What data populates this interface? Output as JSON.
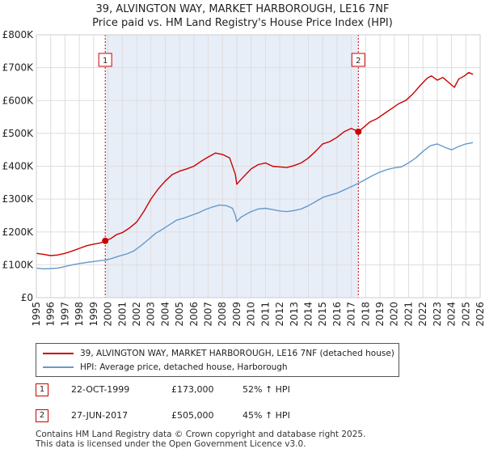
{
  "header": {
    "title_line1": "39, ALVINGTON WAY, MARKET HARBOROUGH, LE16 7NF",
    "title_line2": "Price paid vs. HM Land Registry's House Price Index (HPI)"
  },
  "colors": {
    "property": "#cc0000",
    "hpi": "#6699cc",
    "shade": "#e8eef8",
    "grid": "#dddddd",
    "marker": "#cc0000"
  },
  "chart_data": {
    "type": "line",
    "x_range": [
      1995,
      2026
    ],
    "ylim": [
      0,
      800000
    ],
    "y_ticks": [
      0,
      100000,
      200000,
      300000,
      400000,
      500000,
      600000,
      700000,
      800000
    ],
    "y_tick_labels": [
      "£0",
      "£100K",
      "£200K",
      "£300K",
      "£400K",
      "£500K",
      "£600K",
      "£700K",
      "£800K"
    ],
    "x_ticks": [
      1995,
      1996,
      1997,
      1998,
      1999,
      2000,
      2001,
      2002,
      2003,
      2004,
      2005,
      2006,
      2007,
      2008,
      2009,
      2010,
      2011,
      2012,
      2013,
      2014,
      2015,
      2016,
      2017,
      2018,
      2019,
      2020,
      2021,
      2022,
      2023,
      2024,
      2025,
      2026
    ],
    "x_tick_labels": [
      "1995",
      "1996",
      "1997",
      "1998",
      "1999",
      "2000",
      "2001",
      "2002",
      "2003",
      "2004",
      "2005",
      "2006",
      "2007",
      "2008",
      "2009",
      "2010",
      "2011",
      "2012",
      "2013",
      "2014",
      "2015",
      "2016",
      "2017",
      "2018",
      "2019",
      "2020",
      "2021",
      "2022",
      "2023",
      "2024",
      "2025",
      "2026"
    ],
    "shaded_range": [
      1999.81,
      2017.49
    ],
    "series": [
      {
        "name": "39, ALVINGTON WAY, MARKET HARBOROUGH, LE16 7NF (detached house)",
        "color": "#cc0000",
        "points": [
          [
            1995.0,
            135000
          ],
          [
            1995.5,
            132000
          ],
          [
            1996.0,
            128000
          ],
          [
            1996.5,
            130000
          ],
          [
            1997.0,
            135000
          ],
          [
            1997.5,
            142000
          ],
          [
            1998.0,
            150000
          ],
          [
            1998.5,
            158000
          ],
          [
            1999.0,
            163000
          ],
          [
            1999.5,
            167000
          ],
          [
            1999.81,
            173000
          ],
          [
            2000.2,
            180000
          ],
          [
            2000.6,
            192000
          ],
          [
            2001.0,
            198000
          ],
          [
            2001.5,
            212000
          ],
          [
            2002.0,
            230000
          ],
          [
            2002.5,
            262000
          ],
          [
            2003.0,
            300000
          ],
          [
            2003.5,
            330000
          ],
          [
            2004.0,
            355000
          ],
          [
            2004.5,
            375000
          ],
          [
            2005.0,
            385000
          ],
          [
            2005.5,
            392000
          ],
          [
            2006.0,
            400000
          ],
          [
            2006.5,
            415000
          ],
          [
            2007.0,
            428000
          ],
          [
            2007.5,
            440000
          ],
          [
            2008.0,
            436000
          ],
          [
            2008.5,
            425000
          ],
          [
            2008.9,
            375000
          ],
          [
            2009.0,
            345000
          ],
          [
            2009.3,
            360000
          ],
          [
            2009.7,
            378000
          ],
          [
            2010.0,
            392000
          ],
          [
            2010.5,
            405000
          ],
          [
            2011.0,
            410000
          ],
          [
            2011.5,
            400000
          ],
          [
            2012.0,
            398000
          ],
          [
            2012.5,
            396000
          ],
          [
            2013.0,
            402000
          ],
          [
            2013.5,
            410000
          ],
          [
            2014.0,
            425000
          ],
          [
            2014.5,
            445000
          ],
          [
            2015.0,
            468000
          ],
          [
            2015.5,
            475000
          ],
          [
            2016.0,
            488000
          ],
          [
            2016.5,
            505000
          ],
          [
            2017.0,
            515000
          ],
          [
            2017.49,
            505000
          ],
          [
            2017.9,
            520000
          ],
          [
            2018.3,
            535000
          ],
          [
            2018.8,
            545000
          ],
          [
            2019.3,
            560000
          ],
          [
            2019.8,
            575000
          ],
          [
            2020.3,
            590000
          ],
          [
            2020.8,
            600000
          ],
          [
            2021.3,
            620000
          ],
          [
            2021.8,
            645000
          ],
          [
            2022.3,
            668000
          ],
          [
            2022.6,
            675000
          ],
          [
            2023.0,
            662000
          ],
          [
            2023.4,
            670000
          ],
          [
            2023.8,
            655000
          ],
          [
            2024.2,
            640000
          ],
          [
            2024.5,
            665000
          ],
          [
            2024.9,
            675000
          ],
          [
            2025.2,
            685000
          ],
          [
            2025.5,
            680000
          ]
        ]
      },
      {
        "name": "HPI: Average price, detached house, Harborough",
        "color": "#6699cc",
        "points": [
          [
            1995.0,
            90000
          ],
          [
            1995.5,
            88000
          ],
          [
            1996.0,
            88500
          ],
          [
            1996.5,
            90000
          ],
          [
            1997.0,
            95000
          ],
          [
            1997.5,
            100000
          ],
          [
            1998.0,
            104000
          ],
          [
            1998.5,
            107000
          ],
          [
            1999.0,
            110000
          ],
          [
            1999.5,
            113000
          ],
          [
            1999.81,
            114000
          ],
          [
            2000.3,
            120000
          ],
          [
            2000.8,
            127000
          ],
          [
            2001.3,
            133000
          ],
          [
            2001.8,
            142000
          ],
          [
            2002.3,
            158000
          ],
          [
            2002.8,
            176000
          ],
          [
            2003.3,
            195000
          ],
          [
            2003.8,
            208000
          ],
          [
            2004.3,
            222000
          ],
          [
            2004.8,
            236000
          ],
          [
            2005.3,
            242000
          ],
          [
            2005.8,
            250000
          ],
          [
            2006.3,
            258000
          ],
          [
            2006.8,
            268000
          ],
          [
            2007.3,
            276000
          ],
          [
            2007.8,
            282000
          ],
          [
            2008.3,
            280000
          ],
          [
            2008.7,
            272000
          ],
          [
            2008.9,
            250000
          ],
          [
            2009.0,
            232000
          ],
          [
            2009.3,
            245000
          ],
          [
            2009.7,
            255000
          ],
          [
            2010.0,
            262000
          ],
          [
            2010.5,
            270000
          ],
          [
            2011.0,
            272000
          ],
          [
            2011.5,
            268000
          ],
          [
            2012.0,
            264000
          ],
          [
            2012.5,
            262000
          ],
          [
            2013.0,
            265000
          ],
          [
            2013.5,
            270000
          ],
          [
            2014.0,
            280000
          ],
          [
            2014.5,
            292000
          ],
          [
            2015.0,
            305000
          ],
          [
            2015.5,
            312000
          ],
          [
            2016.0,
            318000
          ],
          [
            2016.5,
            328000
          ],
          [
            2017.0,
            338000
          ],
          [
            2017.49,
            348000
          ],
          [
            2018.0,
            360000
          ],
          [
            2018.5,
            372000
          ],
          [
            2019.0,
            382000
          ],
          [
            2019.5,
            390000
          ],
          [
            2020.0,
            395000
          ],
          [
            2020.5,
            398000
          ],
          [
            2021.0,
            410000
          ],
          [
            2021.5,
            425000
          ],
          [
            2022.0,
            445000
          ],
          [
            2022.5,
            462000
          ],
          [
            2023.0,
            468000
          ],
          [
            2023.5,
            458000
          ],
          [
            2024.0,
            450000
          ],
          [
            2024.5,
            460000
          ],
          [
            2025.0,
            468000
          ],
          [
            2025.5,
            472000
          ]
        ]
      }
    ],
    "sales": [
      {
        "label": "1",
        "x": 1999.81,
        "value": 173000
      },
      {
        "label": "2",
        "x": 2017.49,
        "value": 505000
      }
    ]
  },
  "legend": {
    "property_label": "39, ALVINGTON WAY, MARKET HARBOROUGH, LE16 7NF (detached house)",
    "hpi_label": "HPI: Average price, detached house, Harborough"
  },
  "transactions": [
    {
      "label": "1",
      "date": "22-OCT-1999",
      "price": "£173,000",
      "hpi": "52% ↑ HPI"
    },
    {
      "label": "2",
      "date": "27-JUN-2017",
      "price": "£505,000",
      "hpi": "45% ↑ HPI"
    }
  ],
  "footer": {
    "line1": "Contains HM Land Registry data © Crown copyright and database right 2025.",
    "line2": "This data is licensed under the Open Government Licence v3.0."
  }
}
